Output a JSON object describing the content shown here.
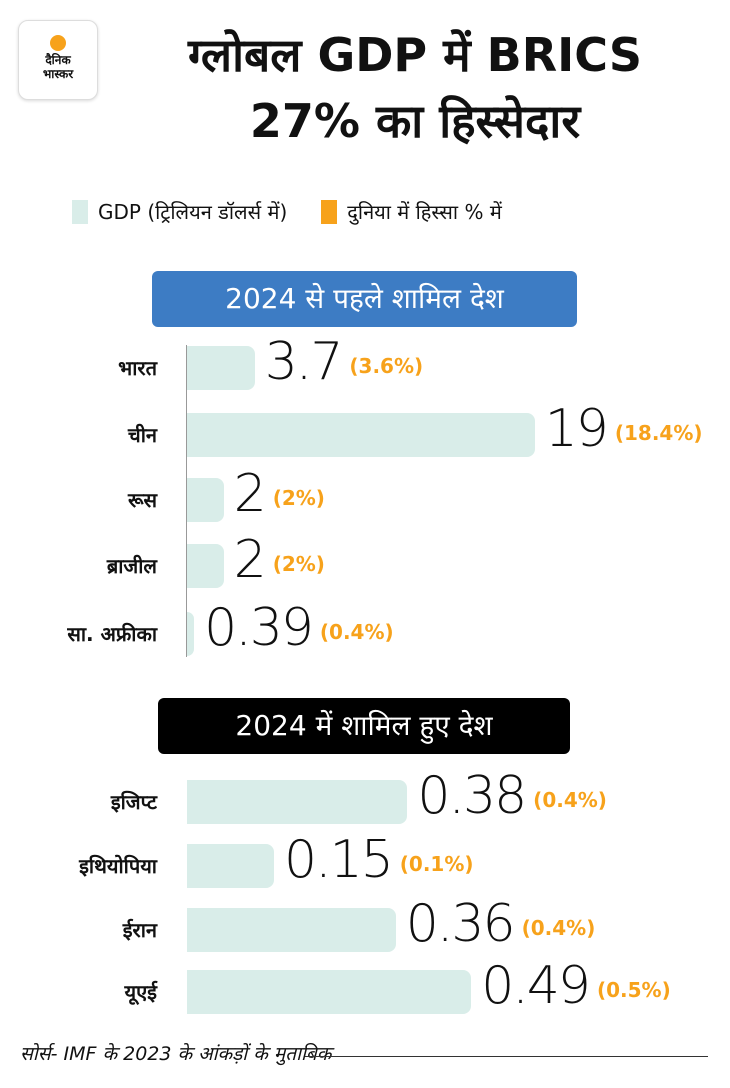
{
  "logo": {
    "line1": "दैनिक",
    "line2": "भास्कर"
  },
  "title": {
    "line1": "ग्लोबल GDP में BRICS",
    "line2": "27% का हिस्सेदार"
  },
  "legend": [
    {
      "label": "GDP (ट्रिलियन डॉलर्स में)",
      "color": "#d9ede9"
    },
    {
      "label": "दुनिया में हिस्सा % में",
      "color": "#f7a21b"
    }
  ],
  "chart_data": {
    "type": "bar",
    "title": "ग्लोबल GDP में BRICS 27% का हिस्सेदार",
    "groups": [
      {
        "name": "2024 से पहले शामिल देश",
        "color": "#3d7cc4",
        "categories": [
          "भारत",
          "चीन",
          "रूस",
          "ब्राजील",
          "सा. अफ्रीका"
        ],
        "values": [
          3.7,
          19,
          2,
          2,
          0.39
        ],
        "value_labels": [
          "3.7",
          "19",
          "2",
          "2",
          "0.39"
        ],
        "share_labels": [
          "(3.6%)",
          "(18.4%)",
          "(2%)",
          "(2%)",
          "(0.4%)"
        ]
      },
      {
        "name": "2024 में शामिल हुए देश",
        "color": "#000000",
        "categories": [
          "इजिप्ट",
          "इथियोपिया",
          "ईरान",
          "यूएई"
        ],
        "values": [
          0.38,
          0.15,
          0.36,
          0.49
        ],
        "value_labels": [
          "0.38",
          "0.15",
          "0.36",
          "0.49"
        ],
        "share_labels": [
          "(0.4%)",
          "(0.1%)",
          "(0.4%)",
          "(0.5%)"
        ]
      }
    ]
  },
  "footer": "सोर्स- IMF के 2023 के आंकड़ों के मुताबिक"
}
